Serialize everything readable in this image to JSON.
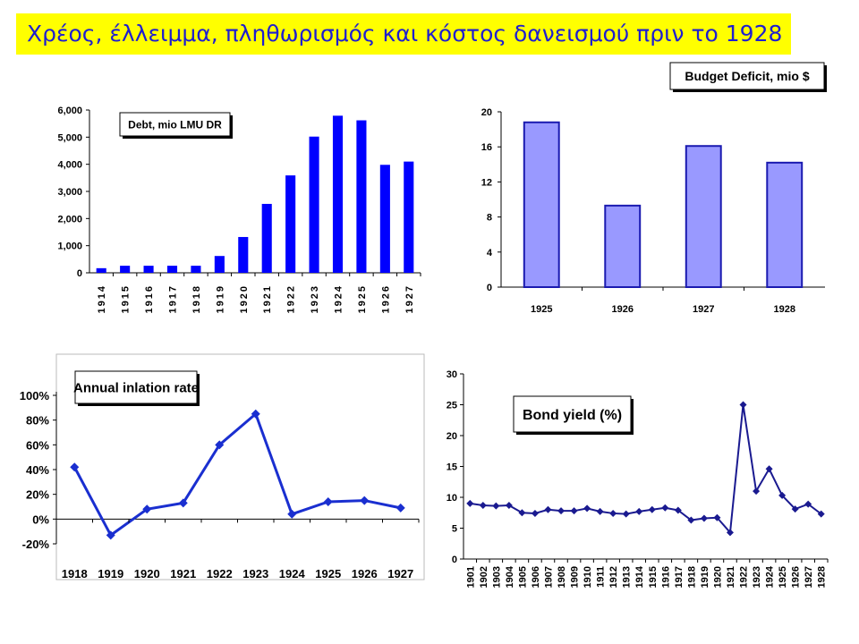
{
  "page_title": "Χρέος, έλλειμμα, πληθωρισμός και κόστος δανεισμού πριν το 1928",
  "chart_data": [
    {
      "id": "debt",
      "type": "bar",
      "title": "Debt, mio LMU DR",
      "categories": [
        "1914",
        "1915",
        "1916",
        "1917",
        "1918",
        "1919",
        "1920",
        "1921",
        "1922",
        "1923",
        "1924",
        "1925",
        "1926",
        "1927"
      ],
      "values": [
        170,
        260,
        260,
        260,
        260,
        620,
        1320,
        2540,
        3590,
        5020,
        5790,
        5620,
        3980,
        4100
      ],
      "ylim": [
        0,
        6000
      ],
      "yticks": [
        "0",
        "1,000",
        "2,000",
        "3,000",
        "4,000",
        "5,000",
        "6,000"
      ],
      "bar_color": "#0000ff",
      "grid": false
    },
    {
      "id": "deficit",
      "type": "bar",
      "title": "Budget Deficit, mio $",
      "categories": [
        "1925",
        "1926",
        "1927",
        "1928"
      ],
      "values": [
        18.8,
        9.3,
        16.1,
        14.2
      ],
      "ylim": [
        0,
        20
      ],
      "yticks": [
        "0",
        "4",
        "8",
        "12",
        "16",
        "20"
      ],
      "bar_color": "#9999ff",
      "bar_edge": "#1a1ab0",
      "grid": false
    },
    {
      "id": "inflation",
      "type": "line",
      "title": "Annual inlation rate",
      "categories": [
        "1918",
        "1919",
        "1920",
        "1921",
        "1922",
        "1923",
        "1924",
        "1925",
        "1926",
        "1927"
      ],
      "values": [
        42,
        -13,
        8,
        13,
        60,
        85,
        4,
        14,
        15,
        9
      ],
      "ylim": [
        -20,
        100
      ],
      "yticks": [
        "-20%",
        "0%",
        "20%",
        "40%",
        "60%",
        "80%",
        "100%"
      ],
      "line_color": "#1a2fd0"
    },
    {
      "id": "bond",
      "type": "line",
      "title": "Bond yield (%)",
      "categories": [
        "1901",
        "1902",
        "1903",
        "1904",
        "1905",
        "1906",
        "1907",
        "1908",
        "1909",
        "1910",
        "1911",
        "1912",
        "1913",
        "1914",
        "1915",
        "1916",
        "1917",
        "1918",
        "1919",
        "1920",
        "1921",
        "1922",
        "1923",
        "1924",
        "1925",
        "1926",
        "1927",
        "1928"
      ],
      "values": [
        9.0,
        8.7,
        8.6,
        8.7,
        7.5,
        7.4,
        8.0,
        7.8,
        7.8,
        8.2,
        7.7,
        7.4,
        7.3,
        7.7,
        8.0,
        8.3,
        7.9,
        6.3,
        6.6,
        6.7,
        4.3,
        25.0,
        11.0,
        14.6,
        10.3,
        8.1,
        8.9,
        7.3
      ],
      "ylim": [
        0,
        30
      ],
      "yticks": [
        "0",
        "5",
        "10",
        "15",
        "20",
        "25",
        "30"
      ],
      "line_color": "#1a1a90"
    }
  ]
}
